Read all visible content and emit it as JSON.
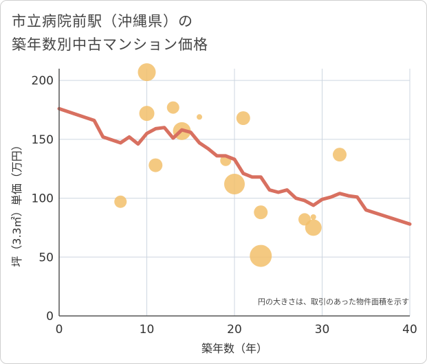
{
  "title_line1": "市立病院前駅（沖縄県）の",
  "title_line2": "築年数別中古マンション価格",
  "colors": {
    "line": "#d87060",
    "bubble": "#f2bf6b",
    "grid": "#cdd6e0",
    "axis": "#555555"
  },
  "chart_data": {
    "type": "scatter",
    "title": "市立病院前駅（沖縄県）の築年数別中古マンション価格",
    "xlabel": "築年数（年）",
    "ylabel": "坪（3.3㎡）単価（万円）",
    "note": "円の大きさは、取引のあった物件面積を示す",
    "xlim": [
      0,
      40
    ],
    "ylim": [
      0,
      210
    ],
    "x_ticks": [
      "0",
      "10",
      "20",
      "30",
      "40"
    ],
    "y_ticks": [
      "0",
      "50",
      "100",
      "150",
      "200"
    ],
    "x_tick_values": [
      0,
      10,
      20,
      30,
      40
    ],
    "y_tick_values": [
      0,
      50,
      100,
      150,
      200
    ],
    "grid": true,
    "bubbles": [
      {
        "x": 7,
        "y": 97,
        "size": 9
      },
      {
        "x": 10,
        "y": 207,
        "size": 13
      },
      {
        "x": 10,
        "y": 172,
        "size": 11
      },
      {
        "x": 11,
        "y": 128,
        "size": 10
      },
      {
        "x": 13,
        "y": 177,
        "size": 9
      },
      {
        "x": 14,
        "y": 157,
        "size": 13
      },
      {
        "x": 16,
        "y": 169,
        "size": 4
      },
      {
        "x": 19,
        "y": 132,
        "size": 8
      },
      {
        "x": 20,
        "y": 112,
        "size": 15
      },
      {
        "x": 21,
        "y": 168,
        "size": 10
      },
      {
        "x": 23,
        "y": 88,
        "size": 10
      },
      {
        "x": 23,
        "y": 51,
        "size": 16
      },
      {
        "x": 28,
        "y": 82,
        "size": 9
      },
      {
        "x": 29,
        "y": 84,
        "size": 4
      },
      {
        "x": 29,
        "y": 75,
        "size": 12
      },
      {
        "x": 32,
        "y": 137,
        "size": 10
      }
    ],
    "trend_line": {
      "x": [
        0,
        4,
        5,
        7,
        8,
        9,
        10,
        11,
        12,
        13,
        14,
        15,
        16,
        17,
        18,
        19,
        20,
        21,
        22,
        23,
        24,
        25,
        26,
        27,
        28,
        29,
        30,
        31,
        32,
        33,
        34,
        35,
        40
      ],
      "y": [
        176,
        166,
        152,
        147,
        152,
        146,
        155,
        159,
        160,
        151,
        158,
        156,
        147,
        142,
        136,
        136,
        133,
        121,
        118,
        118,
        107,
        105,
        107,
        100,
        98,
        94,
        99,
        101,
        104,
        102,
        101,
        90,
        78
      ]
    }
  }
}
